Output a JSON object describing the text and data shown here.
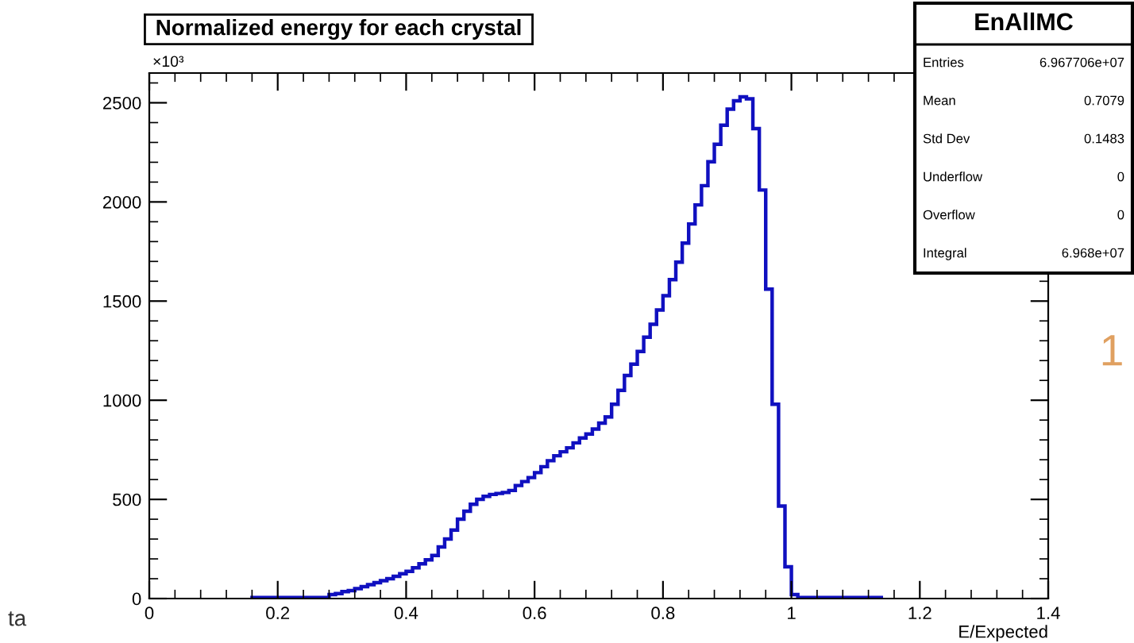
{
  "chart_data": {
    "type": "histogram",
    "title": "Normalized energy for each crystal",
    "xlabel": "E/Expected",
    "color": "#1010c0",
    "bins": [
      0.16,
      0.17,
      0.18,
      0.19,
      0.2,
      0.21,
      0.22,
      0.23,
      0.24,
      0.25,
      0.26,
      0.27,
      0.28,
      0.29,
      0.3,
      0.31,
      0.32,
      0.33,
      0.34,
      0.35,
      0.36,
      0.37,
      0.38,
      0.39,
      0.4,
      0.41,
      0.42,
      0.43,
      0.44,
      0.45,
      0.46,
      0.47,
      0.48,
      0.49,
      0.5,
      0.51,
      0.52,
      0.53,
      0.54,
      0.55,
      0.56,
      0.57,
      0.58,
      0.59,
      0.6,
      0.61,
      0.62,
      0.63,
      0.64,
      0.65,
      0.66,
      0.67,
      0.68,
      0.69,
      0.7,
      0.71,
      0.72,
      0.73,
      0.74,
      0.75,
      0.76,
      0.77,
      0.78,
      0.79,
      0.8,
      0.81,
      0.82,
      0.83,
      0.84,
      0.85,
      0.86,
      0.87,
      0.88,
      0.89,
      0.9,
      0.91,
      0.92,
      0.93,
      0.94,
      0.95,
      0.96,
      0.97,
      0.98,
      0.99,
      1.0,
      1.01,
      1.02,
      1.03,
      1.04,
      1.05,
      1.06,
      1.07,
      1.08,
      1.09,
      1.1,
      1.11,
      1.12,
      1.13,
      1.14
    ],
    "values": [
      5,
      5,
      5,
      5,
      5,
      5,
      5,
      5,
      5,
      5,
      5,
      5,
      20,
      25,
      35,
      40,
      50,
      60,
      70,
      80,
      90,
      100,
      112,
      125,
      137,
      155,
      175,
      195,
      217,
      260,
      300,
      345,
      400,
      440,
      475,
      500,
      515,
      525,
      530,
      535,
      545,
      570,
      590,
      610,
      635,
      665,
      695,
      720,
      740,
      760,
      785,
      810,
      830,
      855,
      885,
      916,
      980,
      1050,
      1125,
      1182,
      1246,
      1318,
      1383,
      1455,
      1527,
      1608,
      1696,
      1792,
      1889,
      1985,
      2082,
      2203,
      2291,
      2387,
      2468,
      2510,
      2530,
      2520,
      2370,
      2060,
      1560,
      980,
      466,
      160,
      20,
      5,
      5,
      5,
      5,
      5,
      5,
      5,
      5,
      5,
      5,
      5,
      5,
      5
    ],
    "xlim": [
      0,
      1.4
    ],
    "xticks": [
      0,
      0.2,
      0.4,
      0.6,
      0.8,
      1,
      1.2,
      1.4
    ],
    "ylim": [
      0,
      2650
    ],
    "yticks": [
      0,
      500,
      1000,
      1500,
      2000,
      2500
    ],
    "grid": false,
    "annotations": [
      "×10³",
      "ta",
      "1",
      "EnAllMC",
      "Entries",
      "6.967706e+07",
      "Mean",
      "0.7079",
      "Std Dev",
      "0.1483",
      "Underflow",
      "0",
      "Overflow",
      "0",
      "Integral",
      "6.968e+07"
    ]
  }
}
